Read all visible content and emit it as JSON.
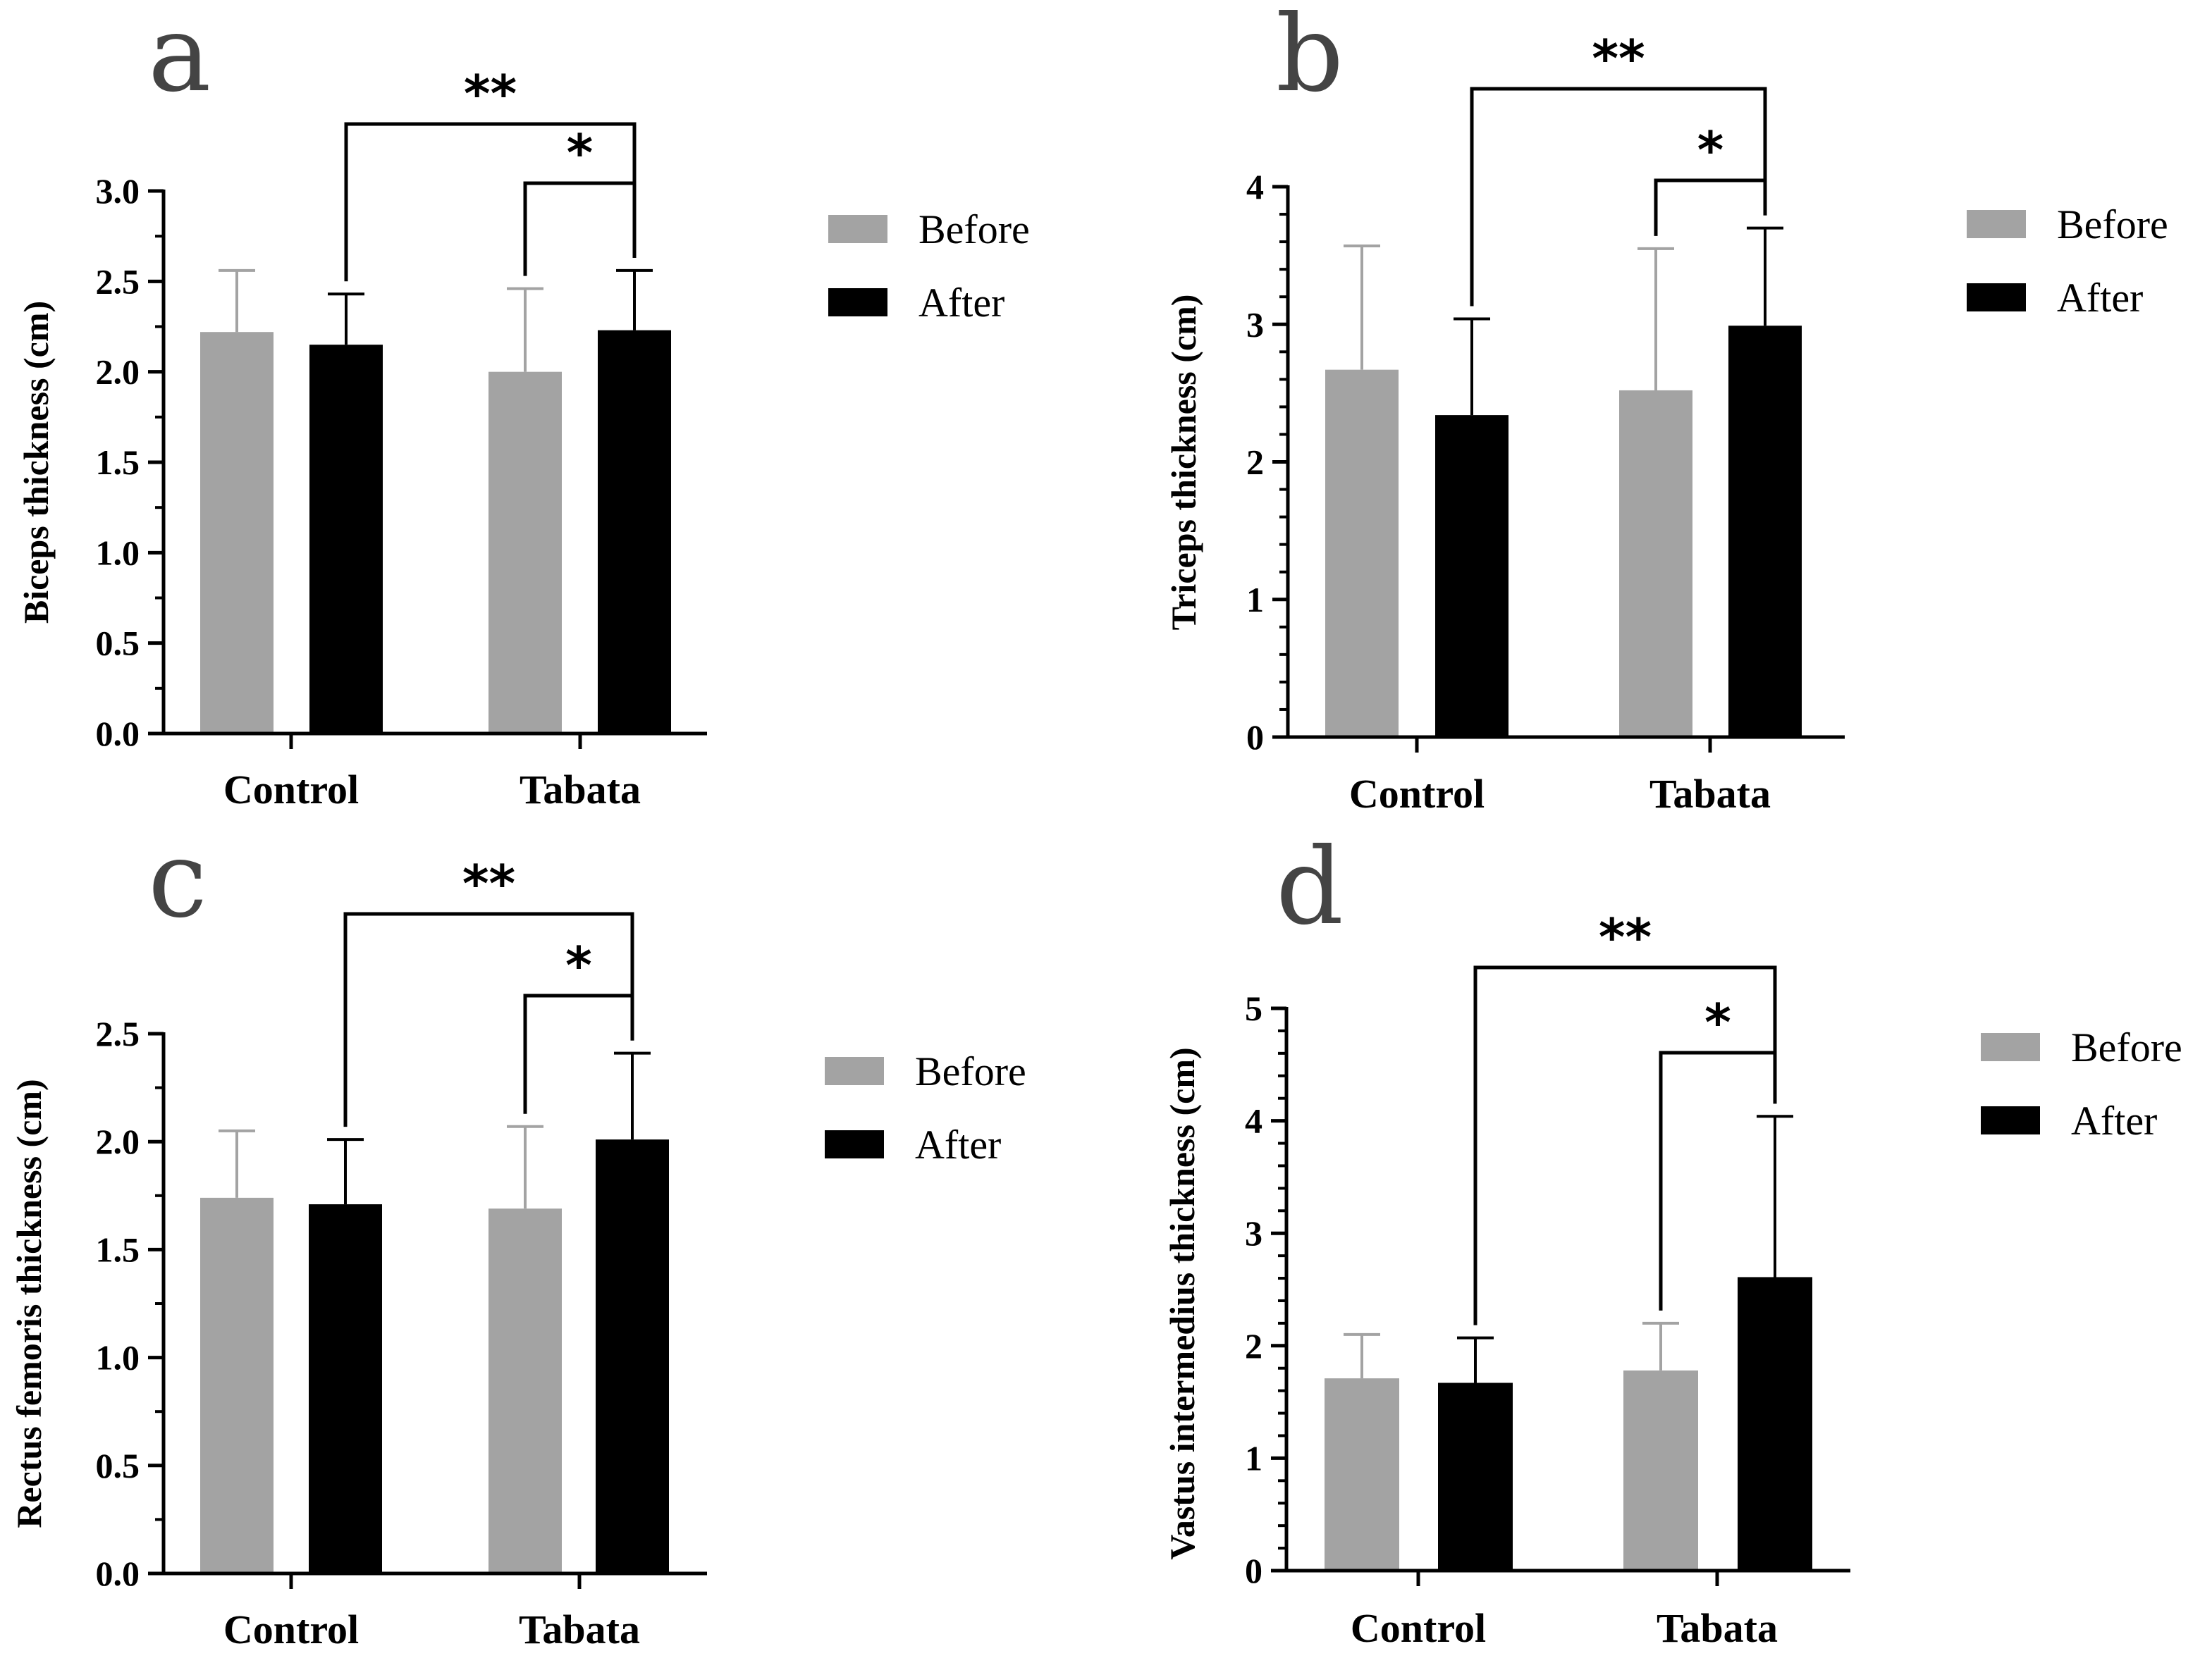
{
  "colors": {
    "before": "#a3a3a3",
    "after": "#000000",
    "axis": "#000000"
  },
  "chart_data": [
    {
      "panel": "a",
      "type": "bar",
      "categories": [
        "Control",
        "Tabata"
      ],
      "ylabel": "Biceps thickness (cm)",
      "ylim": [
        0,
        3.0
      ],
      "yticks": [
        "0.0",
        "0.5",
        "1.0",
        "1.5",
        "2.0",
        "2.5",
        "3.0"
      ],
      "legend": "right",
      "series": [
        {
          "name": "Before",
          "values": [
            2.22,
            2.0
          ],
          "errors": [
            0.34,
            0.46
          ]
        },
        {
          "name": "After",
          "values": [
            2.15,
            2.23
          ],
          "errors": [
            0.28,
            0.33
          ]
        }
      ],
      "significance": [
        {
          "label": "**",
          "from": [
            0,
            1
          ],
          "to": [
            1,
            1
          ]
        },
        {
          "label": "*",
          "from": [
            1,
            0
          ],
          "to": [
            1,
            1
          ]
        }
      ]
    },
    {
      "panel": "b",
      "type": "bar",
      "categories": [
        "Control",
        "Tabata"
      ],
      "ylabel": "Triceps thickness (cm)",
      "ylim": [
        0,
        4
      ],
      "yticks": [
        "0",
        "1",
        "2",
        "3",
        "4"
      ],
      "legend": "right",
      "series": [
        {
          "name": "Before",
          "values": [
            2.67,
            2.52
          ],
          "errors": [
            0.9,
            1.03
          ]
        },
        {
          "name": "After",
          "values": [
            2.34,
            2.99
          ],
          "errors": [
            0.7,
            0.71
          ]
        }
      ],
      "significance": [
        {
          "label": "**",
          "from": [
            0,
            1
          ],
          "to": [
            1,
            1
          ]
        },
        {
          "label": "*",
          "from": [
            1,
            0
          ],
          "to": [
            1,
            1
          ]
        }
      ]
    },
    {
      "panel": "c",
      "type": "bar",
      "categories": [
        "Control",
        "Tabata"
      ],
      "ylabel": "Rectus femoris thickness (cm)",
      "ylim": [
        0,
        2.5
      ],
      "yticks": [
        "0.0",
        "0.5",
        "1.0",
        "1.5",
        "2.0",
        "2.5"
      ],
      "legend": "right",
      "series": [
        {
          "name": "Before",
          "values": [
            1.74,
            1.69
          ],
          "errors": [
            0.31,
            0.38
          ]
        },
        {
          "name": "After",
          "values": [
            1.71,
            2.01
          ],
          "errors": [
            0.3,
            0.4
          ]
        }
      ],
      "significance": [
        {
          "label": "**",
          "from": [
            0,
            1
          ],
          "to": [
            1,
            1
          ]
        },
        {
          "label": "*",
          "from": [
            1,
            0
          ],
          "to": [
            1,
            1
          ]
        }
      ]
    },
    {
      "panel": "d",
      "type": "bar",
      "categories": [
        "Control",
        "Tabata"
      ],
      "ylabel": "Vastus intermedius thickness (cm)",
      "ylim": [
        0,
        5
      ],
      "yticks": [
        "0",
        "1",
        "2",
        "3",
        "4",
        "5"
      ],
      "legend": "right",
      "series": [
        {
          "name": "Before",
          "values": [
            1.71,
            1.78
          ],
          "errors": [
            0.39,
            0.42
          ]
        },
        {
          "name": "After",
          "values": [
            1.67,
            2.61
          ],
          "errors": [
            0.4,
            1.43
          ]
        }
      ],
      "significance": [
        {
          "label": "**",
          "from": [
            0,
            1
          ],
          "to": [
            1,
            1
          ]
        },
        {
          "label": "*",
          "from": [
            1,
            0
          ],
          "to": [
            1,
            1
          ]
        }
      ]
    }
  ]
}
